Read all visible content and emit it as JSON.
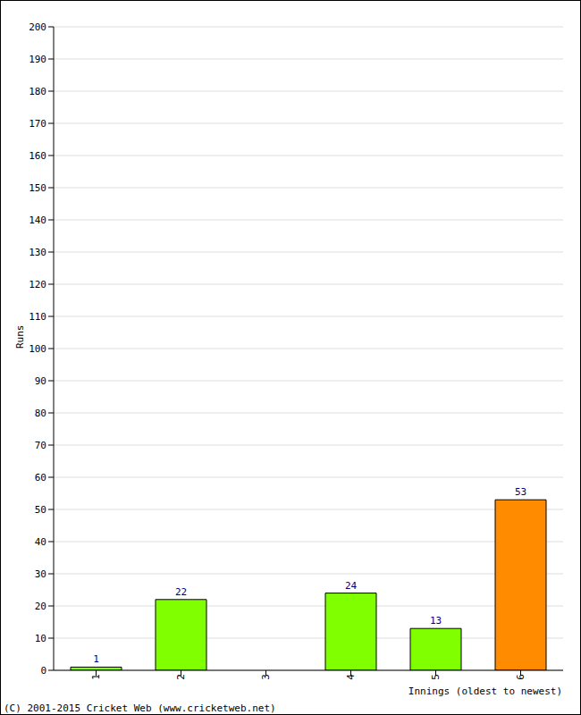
{
  "chart_data": {
    "type": "bar",
    "categories": [
      "1",
      "2",
      "3",
      "4",
      "5",
      "6"
    ],
    "values": [
      1,
      22,
      0,
      24,
      13,
      53
    ],
    "colors": [
      "#80ff00",
      "#80ff00",
      "#80ff00",
      "#80ff00",
      "#80ff00",
      "#ff8c00"
    ],
    "x_label": "Innings (oldest to newest)",
    "y_label": "Runs",
    "annotations": [
      "(C) 2001-2015 Cricket Web (www.cricketweb.net)"
    ],
    "ylim": [
      0,
      200
    ],
    "yticks": [
      0,
      10,
      20,
      30,
      40,
      50,
      60,
      70,
      80,
      90,
      100,
      110,
      120,
      130,
      140,
      150,
      160,
      170,
      180,
      190,
      200
    ],
    "grid": true,
    "data_labels": true
  }
}
